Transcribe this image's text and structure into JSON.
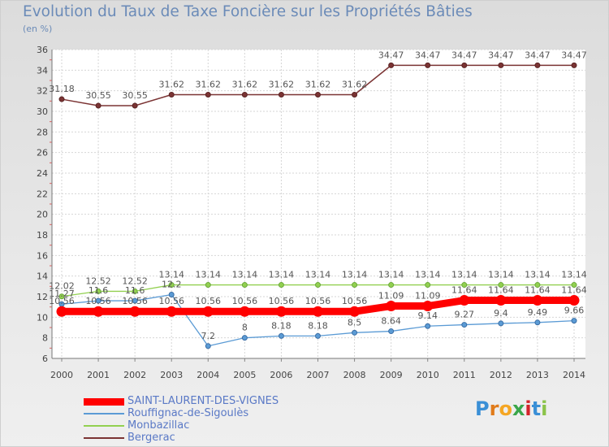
{
  "chart_data": {
    "type": "line",
    "title": "Evolution du Taux de Taxe Foncière sur les Propriétés Bâties",
    "ylabel": "(en %)",
    "xlabel": "",
    "ylim": [
      6,
      36
    ],
    "yticks": [
      6,
      8,
      10,
      12,
      14,
      16,
      18,
      20,
      22,
      24,
      26,
      28,
      30,
      32,
      34,
      36
    ],
    "categories": [
      "2000",
      "2001",
      "2002",
      "2003",
      "2004",
      "2005",
      "2006",
      "2007",
      "2008",
      "2009",
      "2010",
      "2011",
      "2012",
      "2013",
      "2014"
    ],
    "grid": true,
    "series": [
      {
        "name": "SAINT-LAURENT-DES-VIGNES",
        "color": "#ff0000",
        "values": [
          10.56,
          10.56,
          10.56,
          10.56,
          10.56,
          10.56,
          10.56,
          10.56,
          10.56,
          11.09,
          11.09,
          11.64,
          11.64,
          11.64,
          11.64
        ],
        "labels": [
          "10.56",
          "10.56",
          "10.56",
          "10.56",
          "10.56",
          "10.56",
          "10.56",
          "10.56",
          "10.56",
          "11.09",
          "11.09",
          "11.64",
          "11.64",
          "11.64",
          "11.64"
        ]
      },
      {
        "name": "Rouffignac-de-Sigoulès",
        "color": "#5b9bd5",
        "values": [
          11.27,
          11.6,
          11.6,
          12.2,
          7.2,
          8,
          8.18,
          8.18,
          8.5,
          8.64,
          9.14,
          9.27,
          9.4,
          9.49,
          9.66
        ],
        "labels": [
          "11.27",
          "11.6",
          "11.6",
          "12.2",
          "7.2",
          "8",
          "8.18",
          "8.18",
          "8.5",
          "8.64",
          "9.14",
          "9.27",
          "9.4",
          "9.49",
          "9.66"
        ]
      },
      {
        "name": "Monbazillac",
        "color": "#92d050",
        "values": [
          12.02,
          12.52,
          12.52,
          13.14,
          13.14,
          13.14,
          13.14,
          13.14,
          13.14,
          13.14,
          13.14,
          13.14,
          13.14,
          13.14,
          13.14
        ],
        "labels": [
          "12.02",
          "12.52",
          "12.52",
          "13.14",
          "13.14",
          "13.14",
          "13.14",
          "13.14",
          "13.14",
          "13.14",
          "13.14",
          "13.14",
          "13.14",
          "13.14",
          "13.14"
        ]
      },
      {
        "name": "Bergerac",
        "color": "#7b3434",
        "values": [
          31.18,
          30.55,
          30.55,
          31.62,
          31.62,
          31.62,
          31.62,
          31.62,
          31.62,
          34.47,
          34.47,
          34.47,
          34.47,
          34.47,
          34.47
        ],
        "labels": [
          "31.18",
          "30.55",
          "30.55",
          "31.62",
          "31.62",
          "31.62",
          "31.62",
          "31.62",
          "31.62",
          "34.47",
          "34.47",
          "34.47",
          "34.47",
          "34.47",
          "34.47"
        ]
      }
    ]
  },
  "legend": {
    "items": [
      "SAINT-LAURENT-DES-VIGNES",
      "Rouffignac-de-Sigoulès",
      "Monbazillac",
      "Bergerac"
    ]
  },
  "logo": {
    "letters": [
      "P",
      "r",
      "o",
      "x",
      "i",
      "t",
      "i"
    ],
    "colors": [
      "#3a8fd6",
      "#e07b1a",
      "#f5a623",
      "#3aa64a",
      "#d4242a",
      "#3a8fd6",
      "#8bc34a"
    ]
  }
}
